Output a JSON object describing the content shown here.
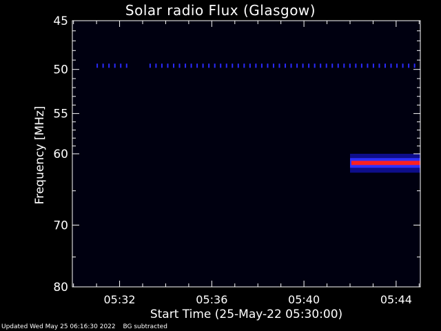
{
  "chart_data": {
    "type": "heatmap",
    "title": "Solar radio Flux (Glasgow)",
    "xlabel": "Start Time (25-May-22 05:30:00)",
    "ylabel": "Frequency [MHz]",
    "x_ticks": [
      "05:32",
      "05:36",
      "05:40",
      "05:44"
    ],
    "x_tick_minutes": [
      2,
      6,
      10,
      14
    ],
    "xlim_minutes": [
      -0.05,
      15.05
    ],
    "y_ticks": [
      45,
      50,
      55,
      60,
      70,
      80
    ],
    "ylim": [
      45,
      80
    ],
    "y_scale": "log",
    "background_color": "#000010",
    "features": [
      {
        "kind": "interference_line",
        "freq_mhz": 49.6,
        "t_start_min": 1.0,
        "t_end_min": 15.0,
        "gaps": [
          [
            2.4,
            3.1
          ]
        ],
        "color": "#2a2aff"
      },
      {
        "kind": "burst_band",
        "freq_low_mhz": 60.0,
        "freq_high_mhz": 62.5,
        "peak_mhz": 61.2,
        "t_start_min": 12.0,
        "t_end_min": 15.05,
        "colors": [
          "#1010a0",
          "#3030ff",
          "#ff2020"
        ]
      }
    ]
  },
  "footer": {
    "updated": "Updated Wed May 25 06:16:30 2022",
    "note": "BG subtracted"
  }
}
